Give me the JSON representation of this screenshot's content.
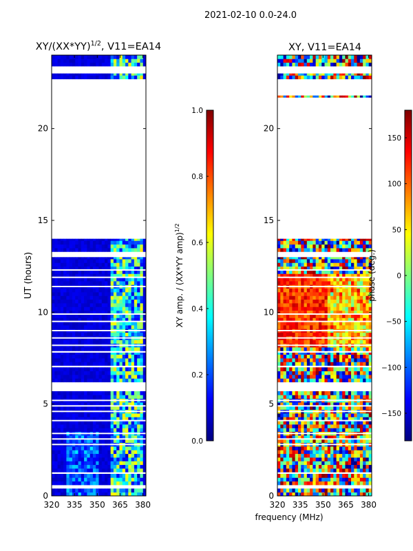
{
  "suptitle": "2021-02-10 0.0-24.0",
  "xlabel_common": "frequency (MHz)",
  "chart_data": [
    {
      "type": "heatmap",
      "name": "amplitude-ratio",
      "title_main": "XY/(XX*YY)",
      "title_sup": "1/2",
      "title_tail": ", V11=EA14",
      "ylabel": "UT (hours)",
      "xlim": [
        320,
        382
      ],
      "ylim": [
        0,
        24
      ],
      "xticks": [
        320,
        335,
        350,
        365,
        380
      ],
      "yticks": [
        0,
        5,
        10,
        15,
        20
      ],
      "colorbar": {
        "label_main": "XY amp. / (XX*YY amp)",
        "label_sup": "1/2",
        "range": [
          0.0,
          1.0
        ],
        "ticks": [
          "0.0",
          "0.2",
          "0.4",
          "0.6",
          "0.8",
          "1.0"
        ],
        "tick_values": [
          0.0,
          0.2,
          0.4,
          0.6,
          0.8,
          1.0
        ],
        "colormap": "jet"
      },
      "data_hour_ranges": [
        [
          0,
          0.4
        ],
        [
          0.6,
          1.2
        ],
        [
          1.3,
          5.7
        ],
        [
          6.2,
          7.0
        ],
        [
          7.1,
          7.8
        ],
        [
          7.9,
          13.0
        ],
        [
          13.3,
          14.0
        ],
        [
          22.7,
          23.0
        ],
        [
          23.4,
          24.0
        ]
      ],
      "flagged_hours": [
        2.8,
        3.1,
        3.4,
        4.1,
        4.6,
        4.9,
        5.2,
        8.2,
        8.6,
        9.0,
        9.5,
        9.9,
        11.4,
        11.9,
        12.3
      ]
    },
    {
      "type": "heatmap",
      "name": "phase",
      "title_main": "XY, V11=EA14",
      "ylabel": "",
      "xlim": [
        320,
        382
      ],
      "ylim": [
        0,
        24
      ],
      "xticks": [
        320,
        335,
        350,
        365,
        380
      ],
      "yticks": [
        0,
        5,
        10,
        15,
        20
      ],
      "colorbar": {
        "label_main": "phase (deg.)",
        "range": [
          -180,
          180
        ],
        "ticks": [
          "150",
          "100",
          "50",
          "0",
          "−50",
          "−100",
          "−150"
        ],
        "tick_values": [
          150,
          100,
          50,
          0,
          -50,
          -100,
          -150
        ],
        "colormap": "jet"
      },
      "data_hour_ranges": [
        [
          0,
          0.4
        ],
        [
          0.6,
          1.2
        ],
        [
          1.3,
          5.7
        ],
        [
          6.2,
          7.0
        ],
        [
          7.1,
          7.8
        ],
        [
          7.9,
          13.0
        ],
        [
          13.3,
          14.0
        ],
        [
          21.7,
          21.8
        ],
        [
          22.7,
          23.0
        ],
        [
          23.4,
          24.0
        ]
      ],
      "flagged_hours": [
        2.8,
        3.1,
        3.4,
        4.1,
        4.6,
        4.9,
        5.2,
        8.2,
        8.6,
        9.0,
        9.5,
        9.9,
        11.4,
        11.9,
        12.3
      ]
    }
  ]
}
